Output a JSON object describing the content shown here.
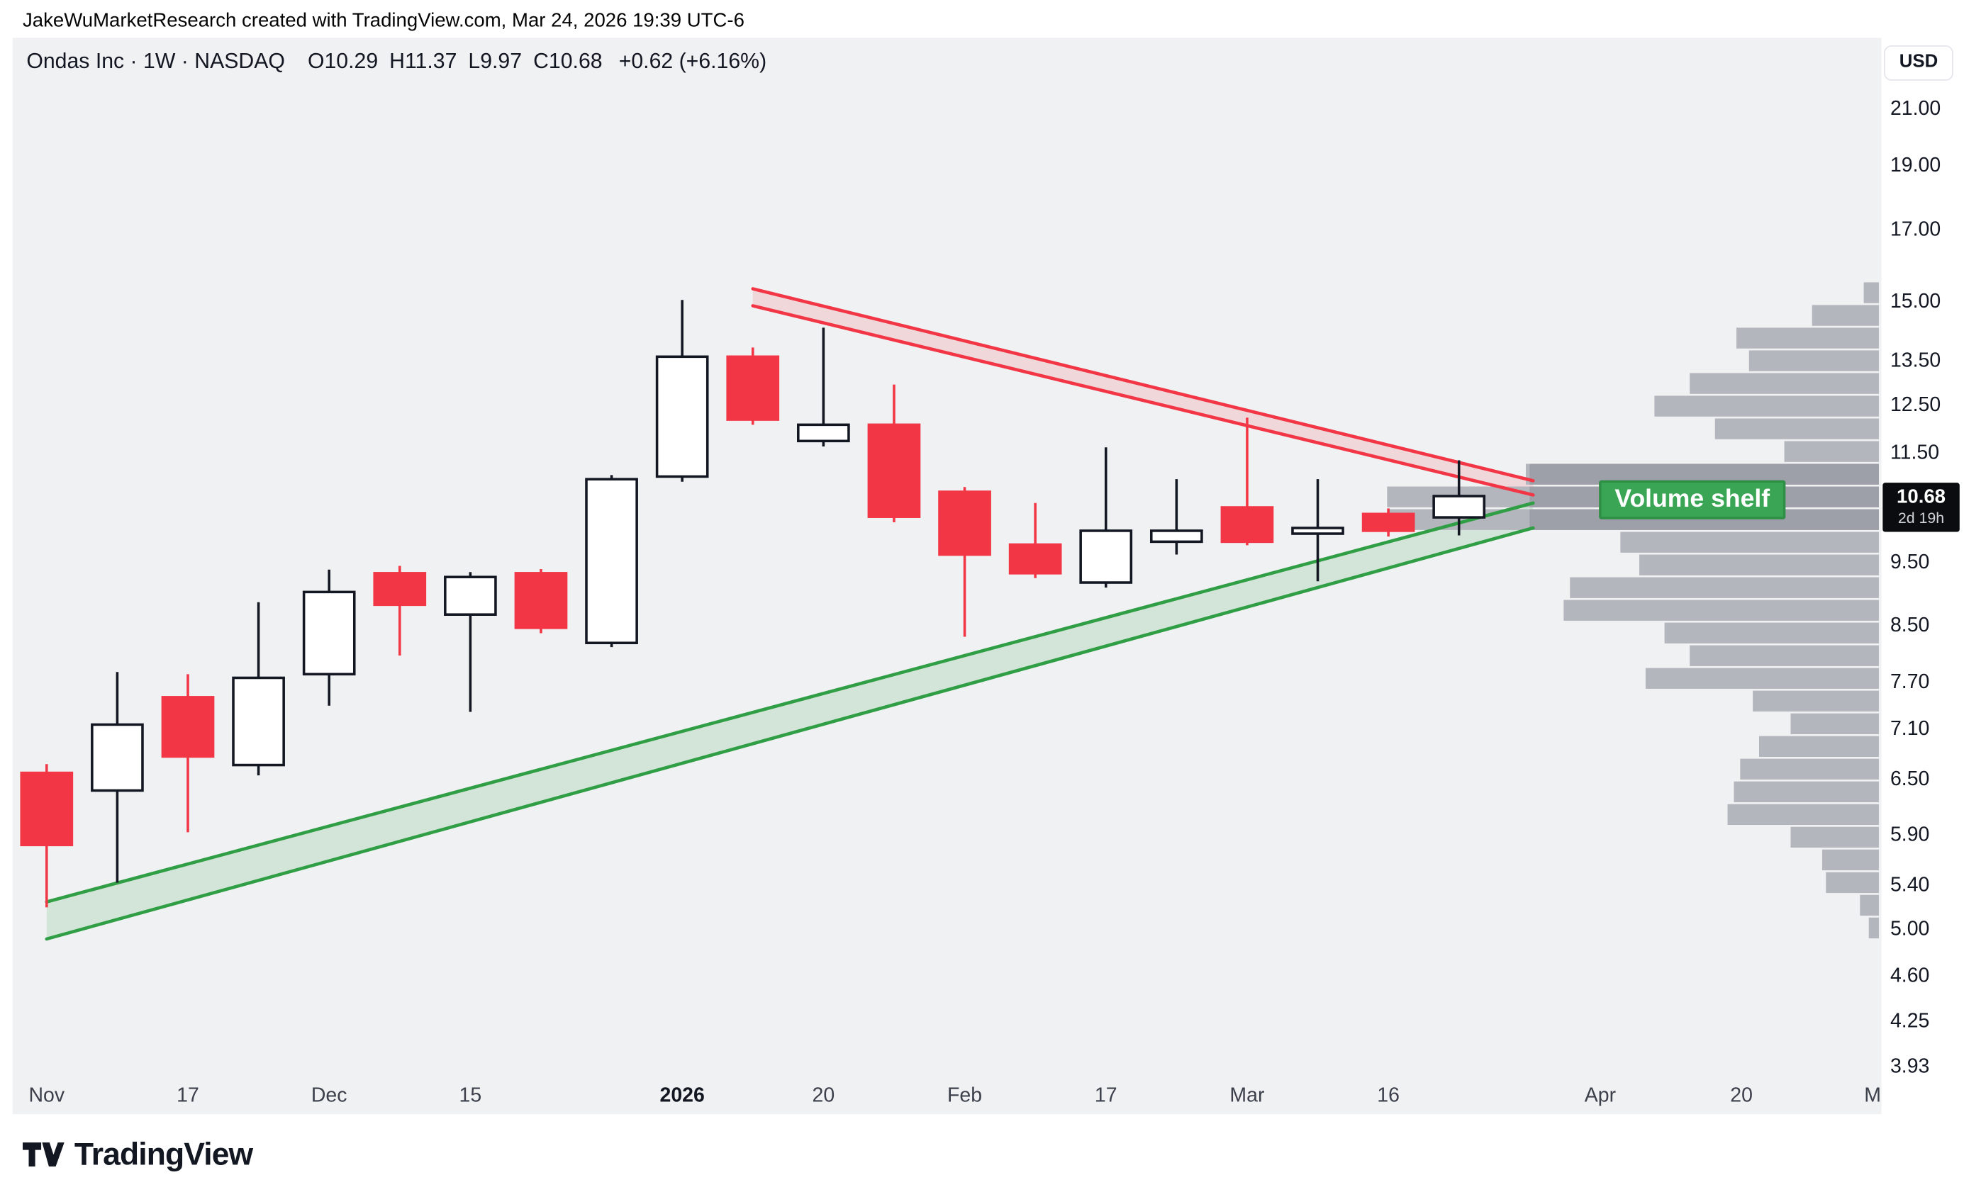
{
  "attribution": "JakeWuMarketResearch created with TradingView.com, Mar 24, 2026 19:39 UTC-6",
  "header": {
    "symbol_line": "Ondas Inc · 1W · NASDAQ",
    "ohlc_fields": [
      {
        "label": "O",
        "value": "10.29"
      },
      {
        "label": "H",
        "value": "11.37"
      },
      {
        "label": "L",
        "value": "9.97"
      },
      {
        "label": "C",
        "value": "10.68"
      }
    ],
    "change": "+0.62 (+6.16%)"
  },
  "currency_button": "USD",
  "price_label": {
    "price": "10.68",
    "countdown": "2d 19h"
  },
  "annotation": {
    "volume_shelf_label": "Volume shelf"
  },
  "footer_logo_text": "TradingView",
  "colors": {
    "pane_bg": "#f0f1f3",
    "up_candle": "#ffffff",
    "down_candle": "#f23645",
    "candle_border": "#131722",
    "trend_red": "#f23645",
    "trend_green": "#2f9e44",
    "volume_bar": "#b4b6bd",
    "volume_bar_dark": "#9da0a8",
    "shelf_bg": "#3aa655",
    "price_label_bg": "#0b0c0f"
  },
  "chart_data": {
    "type": "candlestick",
    "symbol": "Ondas Inc",
    "interval": "1W",
    "exchange": "NASDAQ",
    "price_scale": "logarithmic",
    "last_price": 10.68,
    "y_ticks": [
      {
        "label": "21.00",
        "price": 21.0
      },
      {
        "label": "19.00",
        "price": 19.0
      },
      {
        "label": "17.00",
        "price": 17.0
      },
      {
        "label": "15.00",
        "price": 15.0
      },
      {
        "label": "13.50",
        "price": 13.5
      },
      {
        "label": "12.50",
        "price": 12.5
      },
      {
        "label": "11.50",
        "price": 11.5
      },
      {
        "label": "9.50",
        "price": 9.5
      },
      {
        "label": "8.50",
        "price": 8.5
      },
      {
        "label": "7.70",
        "price": 7.7
      },
      {
        "label": "7.10",
        "price": 7.1
      },
      {
        "label": "6.50",
        "price": 6.5
      },
      {
        "label": "5.90",
        "price": 5.9
      },
      {
        "label": "5.40",
        "price": 5.4
      },
      {
        "label": "5.00",
        "price": 5.0
      },
      {
        "label": "4.60",
        "price": 4.6
      },
      {
        "label": "4.25",
        "price": 4.25
      },
      {
        "label": "3.93",
        "price": 3.93
      }
    ],
    "x_ticks": [
      {
        "label": "Nov",
        "week": 0
      },
      {
        "label": "17",
        "week": 2
      },
      {
        "label": "Dec",
        "week": 4
      },
      {
        "label": "15",
        "week": 6
      },
      {
        "label": "2026",
        "week": 9,
        "bold": true
      },
      {
        "label": "20",
        "week": 11
      },
      {
        "label": "Feb",
        "week": 13
      },
      {
        "label": "17",
        "week": 15
      },
      {
        "label": "Mar",
        "week": 17
      },
      {
        "label": "16",
        "week": 19
      },
      {
        "label": "Apr",
        "week": 22
      },
      {
        "label": "20",
        "week": 24
      },
      {
        "label": "M",
        "week": 25.85
      }
    ],
    "candles": [
      {
        "o": 6.58,
        "h": 6.68,
        "l": 5.2,
        "c": 5.8
      },
      {
        "o": 6.38,
        "h": 7.85,
        "l": 5.43,
        "c": 7.16
      },
      {
        "o": 7.51,
        "h": 7.82,
        "l": 5.93,
        "c": 6.77
      },
      {
        "o": 6.67,
        "h": 8.87,
        "l": 6.55,
        "c": 7.77
      },
      {
        "o": 7.82,
        "h": 9.39,
        "l": 7.4,
        "c": 9.03
      },
      {
        "o": 9.33,
        "h": 9.45,
        "l": 8.08,
        "c": 8.83
      },
      {
        "o": 8.68,
        "h": 9.35,
        "l": 7.32,
        "c": 9.27
      },
      {
        "o": 9.33,
        "h": 9.4,
        "l": 8.4,
        "c": 8.48
      },
      {
        "o": 8.26,
        "h": 11.08,
        "l": 8.2,
        "c": 11.0
      },
      {
        "o": 11.05,
        "h": 15.05,
        "l": 10.95,
        "c": 13.63
      },
      {
        "o": 13.63,
        "h": 13.85,
        "l": 12.1,
        "c": 12.21
      },
      {
        "o": 11.76,
        "h": 14.34,
        "l": 11.65,
        "c": 12.1
      },
      {
        "o": 12.1,
        "h": 12.98,
        "l": 10.2,
        "c": 10.3
      },
      {
        "o": 10.76,
        "h": 10.85,
        "l": 8.35,
        "c": 9.64
      },
      {
        "o": 9.81,
        "h": 10.55,
        "l": 9.25,
        "c": 9.33
      },
      {
        "o": 9.18,
        "h": 11.63,
        "l": 9.1,
        "c": 10.05
      },
      {
        "o": 9.86,
        "h": 11.0,
        "l": 9.64,
        "c": 10.05
      },
      {
        "o": 10.47,
        "h": 12.25,
        "l": 9.8,
        "c": 9.86
      },
      {
        "o": 10.0,
        "h": 11.0,
        "l": 9.2,
        "c": 10.1
      },
      {
        "o": 10.35,
        "h": 10.45,
        "l": 9.95,
        "c": 10.05
      },
      {
        "o": 10.29,
        "h": 11.37,
        "l": 9.97,
        "c": 10.68
      }
    ],
    "trend_bands": [
      {
        "name": "descending-resistance-band",
        "color_key": "trend_red",
        "fill_opacity": 0.14,
        "upper": {
          "w": [
            10,
            21.05
          ],
          "p": [
            15.35,
            10.97
          ]
        },
        "lower": {
          "w": [
            10,
            21.05
          ],
          "p": [
            14.9,
            10.7
          ]
        }
      },
      {
        "name": "ascending-support-band",
        "color_key": "trend_green",
        "fill_opacity": 0.15,
        "upper": {
          "w": [
            0,
            21.05
          ],
          "p": [
            5.25,
            10.55
          ]
        },
        "lower": {
          "w": [
            0,
            21.05
          ],
          "p": [
            4.92,
            10.1
          ]
        }
      }
    ],
    "volume_profile": {
      "right_edge_x": 1490,
      "row_height": 16.5,
      "rows": [
        {
          "y": 224,
          "len": 12
        },
        {
          "y": 242,
          "len": 53
        },
        {
          "y": 260,
          "len": 113
        },
        {
          "y": 278,
          "len": 103
        },
        {
          "y": 296,
          "len": 150
        },
        {
          "y": 314,
          "len": 178
        },
        {
          "y": 332,
          "len": 130
        },
        {
          "y": 350,
          "len": 75
        },
        {
          "y": 368,
          "len": 280,
          "dark": 277
        },
        {
          "y": 386,
          "len": 390,
          "dark": 277
        },
        {
          "y": 404,
          "len": 390,
          "dark": 277
        },
        {
          "y": 422,
          "len": 205
        },
        {
          "y": 440,
          "len": 190
        },
        {
          "y": 458,
          "len": 245
        },
        {
          "y": 476,
          "len": 250
        },
        {
          "y": 494,
          "len": 170
        },
        {
          "y": 512,
          "len": 150
        },
        {
          "y": 530,
          "len": 185
        },
        {
          "y": 548,
          "len": 100
        },
        {
          "y": 566,
          "len": 70
        },
        {
          "y": 584,
          "len": 95
        },
        {
          "y": 602,
          "len": 110
        },
        {
          "y": 620,
          "len": 115
        },
        {
          "y": 638,
          "len": 120
        },
        {
          "y": 656,
          "len": 70
        },
        {
          "y": 674,
          "len": 45
        },
        {
          "y": 692,
          "len": 42
        },
        {
          "y": 710,
          "len": 15
        },
        {
          "y": 728,
          "len": 8
        }
      ]
    }
  }
}
